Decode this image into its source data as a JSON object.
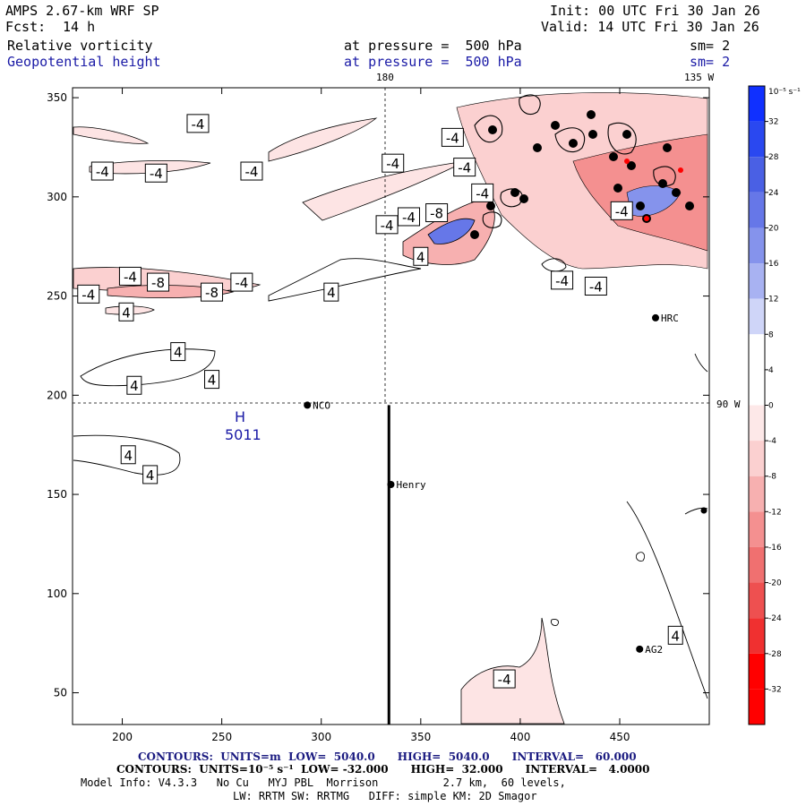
{
  "header": {
    "model": "AMPS 2.67-km WRF SP",
    "fcst_label": "Fcst:",
    "fcst_value": "14 h",
    "init": "Init: 00 UTC Fri 30 Jan 26",
    "valid": "Valid: 14 UTC Fri 30 Jan 26",
    "field1": "Relative vorticity",
    "field1_level": "at pressure =  500 hPa",
    "field1_sm": "sm= 2",
    "field2": "Geopotential height",
    "field2_level": "at pressure =  500 hPa",
    "field2_sm": "sm= 2"
  },
  "map": {
    "top_label_180": "180",
    "top_label_135w": "135 W",
    "right_label_90w": "90 W",
    "high_letter": "H",
    "high_value": "5011",
    "stations": [
      {
        "name": "NCO",
        "x": 293,
        "y": 195
      },
      {
        "name": "Henry",
        "x": 335,
        "y": 155
      },
      {
        "name": "HRC",
        "x": 468,
        "y": 239
      },
      {
        "name": "AG2",
        "x": 460,
        "y": 72
      }
    ],
    "cross_section": {
      "x": 334,
      "y_from": 195,
      "y_to": 34
    }
  },
  "chart_data": {
    "type": "heatmap",
    "title": "Relative vorticity at pressure = 500 hPa; Geopotential height at pressure = 500 hPa",
    "xlim": [
      175,
      495
    ],
    "ylim": [
      34,
      355
    ],
    "x_ticks": [
      200,
      250,
      300,
      350,
      400,
      450
    ],
    "y_ticks": [
      50,
      100,
      150,
      200,
      250,
      300,
      350
    ],
    "colorbar": {
      "unit_label": "10⁻⁵ s⁻¹",
      "levels": [
        36,
        32,
        28,
        24,
        20,
        16,
        12,
        8,
        4,
        0,
        -4,
        -8,
        -12,
        -16,
        -20,
        -24,
        -28,
        -32,
        -36
      ],
      "tick_labels": [
        "32",
        "28",
        "24",
        "20",
        "16",
        "12",
        "8",
        "4",
        "0",
        "-4",
        "-8",
        "-12",
        "-16",
        "-20",
        "-24",
        "-28",
        "-32"
      ],
      "colors": [
        "#1030ff",
        "#2a48f0",
        "#4a60e4",
        "#6677e8",
        "#8593ec",
        "#a8b2f2",
        "#cfd5f8",
        "#ffffff",
        "#ffffff",
        "#fde8e8",
        "#fbd0d0",
        "#f7b0b0",
        "#f49090",
        "#f07070",
        "#ee5050",
        "#f03030",
        "#ff0000",
        "#ff0000"
      ]
    },
    "contour_labels": [
      {
        "text": "-4",
        "x": 238,
        "y": 337
      },
      {
        "text": "-4",
        "x": 190,
        "y": 313
      },
      {
        "text": "-4",
        "x": 217,
        "y": 312
      },
      {
        "text": "-4",
        "x": 265,
        "y": 313
      },
      {
        "text": "-4",
        "x": 336,
        "y": 317
      },
      {
        "text": "-4",
        "x": 372,
        "y": 315
      },
      {
        "text": "-4",
        "x": 333,
        "y": 286
      },
      {
        "text": "-4",
        "x": 344,
        "y": 290
      },
      {
        "text": "-8",
        "x": 358,
        "y": 292
      },
      {
        "text": "-4",
        "x": 204,
        "y": 260
      },
      {
        "text": "-8",
        "x": 218,
        "y": 257
      },
      {
        "text": "-4",
        "x": 183,
        "y": 251
      },
      {
        "text": "-8",
        "x": 245,
        "y": 252
      },
      {
        "text": "-4",
        "x": 260,
        "y": 257
      },
      {
        "text": "4",
        "x": 350,
        "y": 270
      },
      {
        "text": "4",
        "x": 305,
        "y": 252
      },
      {
        "text": "4",
        "x": 202,
        "y": 242
      },
      {
        "text": "4",
        "x": 228,
        "y": 222
      },
      {
        "text": "4",
        "x": 206,
        "y": 205
      },
      {
        "text": "4",
        "x": 245,
        "y": 208
      },
      {
        "text": "4",
        "x": 203,
        "y": 170
      },
      {
        "text": "4",
        "x": 214,
        "y": 160
      },
      {
        "text": "-4",
        "x": 451,
        "y": 293
      },
      {
        "text": "-4",
        "x": 421,
        "y": 258
      },
      {
        "text": "-4",
        "x": 438,
        "y": 255
      },
      {
        "text": "4",
        "x": 478,
        "y": 79
      },
      {
        "text": "-4",
        "x": 392,
        "y": 57
      },
      {
        "text": "-4",
        "x": 366,
        "y": 330
      },
      {
        "text": "-4",
        "x": 381,
        "y": 302
      }
    ]
  },
  "footer": {
    "line1": "CONTOURS:  UNITS=m  LOW=  5040.0      HIGH=  5040.0      INTERVAL=   60.000",
    "line2": "CONTOURS:  UNITS=10⁻⁵ s⁻¹  LOW= -32.000      HIGH=  32.000      INTERVAL=   4.0000",
    "line3": "Model Info: V4.3.3   No Cu   MYJ PBL  Morrison          2.7 km,  60 levels,",
    "line4": "LW: RRTM SW: RRTMG   DIFF: simple KM: 2D Smagor"
  }
}
